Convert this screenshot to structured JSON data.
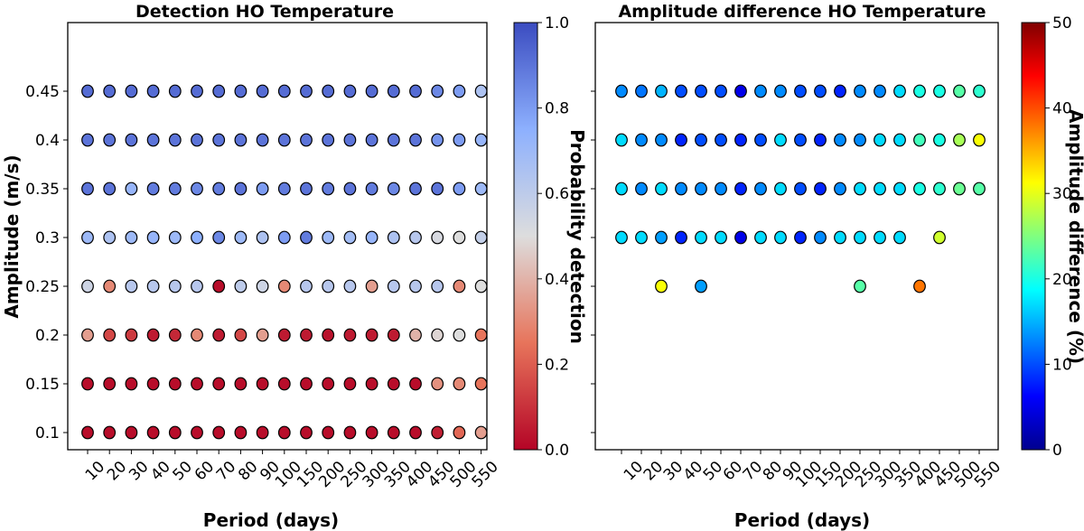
{
  "chart_data": [
    {
      "type": "scatter",
      "title": "Detection HO Temperature",
      "xlabel": "Period (days)",
      "ylabel": "Amplitude (m/s)",
      "x_categories": [
        "10",
        "20",
        "30",
        "40",
        "50",
        "60",
        "70",
        "80",
        "90",
        "100",
        "150",
        "200",
        "250",
        "300",
        "350",
        "400",
        "450",
        "500",
        "550"
      ],
      "y_categories": [
        "0.1",
        "0.15",
        "0.2",
        "0.25",
        "0.3",
        "0.35",
        "0.4",
        "0.45"
      ],
      "colorbar": {
        "label": "Probability detection",
        "range": [
          0,
          1
        ],
        "ticks": [
          "0.0",
          "0.2",
          "0.4",
          "0.6",
          "0.8",
          "1.0"
        ],
        "colormap": "coolwarm_r"
      },
      "grid": false,
      "values": [
        [
          0.02,
          0.02,
          0.02,
          0.02,
          0.02,
          0.02,
          0.02,
          0.02,
          0.02,
          0.02,
          0.02,
          0.02,
          0.02,
          0.02,
          0.02,
          0.02,
          0.06,
          0.22,
          0.35
        ],
        [
          0.02,
          0.02,
          0.02,
          0.02,
          0.02,
          0.02,
          0.02,
          0.02,
          0.02,
          0.02,
          0.02,
          0.02,
          0.02,
          0.02,
          0.02,
          0.02,
          0.32,
          0.3,
          0.25
        ],
        [
          0.35,
          0.15,
          0.12,
          0.05,
          0.08,
          0.3,
          0.05,
          0.15,
          0.35,
          0.05,
          0.05,
          0.03,
          0.05,
          0.05,
          0.05,
          0.4,
          0.48,
          0.5,
          0.25
        ],
        [
          0.55,
          0.3,
          0.62,
          0.62,
          0.62,
          0.62,
          0.02,
          0.6,
          0.55,
          0.3,
          0.62,
          0.62,
          0.62,
          0.35,
          0.62,
          0.62,
          0.62,
          0.3,
          0.5
        ],
        [
          0.7,
          0.65,
          0.7,
          0.72,
          0.7,
          0.75,
          0.85,
          0.7,
          0.65,
          0.8,
          0.88,
          0.7,
          0.68,
          0.72,
          0.65,
          0.62,
          0.52,
          0.5,
          0.58
        ],
        [
          0.9,
          0.9,
          0.72,
          0.88,
          0.88,
          0.85,
          0.88,
          0.9,
          0.8,
          0.88,
          0.9,
          0.88,
          0.9,
          0.88,
          0.85,
          0.9,
          0.9,
          0.8,
          0.7
        ],
        [
          0.9,
          0.9,
          0.9,
          0.9,
          0.9,
          0.9,
          0.9,
          0.9,
          0.9,
          0.9,
          0.9,
          0.9,
          0.9,
          0.9,
          0.9,
          0.9,
          0.82,
          0.8,
          0.72
        ],
        [
          0.92,
          0.92,
          0.92,
          0.92,
          0.92,
          0.92,
          0.92,
          0.92,
          0.92,
          0.92,
          0.92,
          0.92,
          0.92,
          0.92,
          0.92,
          0.92,
          0.85,
          0.8,
          0.65
        ]
      ]
    },
    {
      "type": "scatter",
      "title": "Amplitude difference HO Temperature",
      "xlabel": "Period (days)",
      "ylabel": "",
      "x_categories": [
        "10",
        "20",
        "30",
        "40",
        "50",
        "60",
        "70",
        "80",
        "90",
        "100",
        "150",
        "200",
        "250",
        "300",
        "350",
        "400",
        "450",
        "500",
        "550"
      ],
      "y_categories": [
        "0.1",
        "0.15",
        "0.2",
        "0.25",
        "0.3",
        "0.35",
        "0.4",
        "0.45"
      ],
      "colorbar": {
        "label": "Amplitude difference (%)",
        "range": [
          0,
          50
        ],
        "ticks": [
          "0",
          "10",
          "20",
          "30",
          "40",
          "50"
        ],
        "colormap": "jet"
      },
      "grid": false,
      "values": [
        [
          null,
          null,
          null,
          null,
          null,
          null,
          null,
          null,
          null,
          null,
          null,
          null,
          null,
          null,
          null,
          null,
          null,
          null,
          null
        ],
        [
          null,
          null,
          null,
          null,
          null,
          null,
          null,
          null,
          null,
          null,
          null,
          null,
          null,
          null,
          null,
          null,
          null,
          null,
          null
        ],
        [
          null,
          null,
          null,
          null,
          null,
          null,
          null,
          null,
          null,
          null,
          null,
          null,
          null,
          null,
          null,
          null,
          null,
          null,
          null
        ],
        [
          null,
          null,
          31,
          null,
          14,
          null,
          null,
          null,
          null,
          null,
          null,
          null,
          23,
          null,
          null,
          38,
          null,
          null,
          null
        ],
        [
          17,
          17,
          14,
          8,
          17,
          17,
          5,
          17,
          17,
          8,
          13,
          17,
          17,
          17,
          17,
          null,
          29,
          null,
          null
        ],
        [
          17,
          13,
          17,
          13,
          13,
          13,
          8,
          13,
          17,
          10,
          8,
          13,
          17,
          17,
          17,
          20,
          21,
          24,
          23
        ],
        [
          17,
          13,
          13,
          8,
          10,
          10,
          8,
          10,
          17,
          10,
          8,
          13,
          13,
          17,
          17,
          22,
          20,
          27,
          31
        ],
        [
          13,
          12,
          15,
          10,
          10,
          10,
          5,
          13,
          13,
          10,
          10,
          8,
          13,
          13,
          17,
          20,
          20,
          23,
          21
        ]
      ]
    }
  ]
}
